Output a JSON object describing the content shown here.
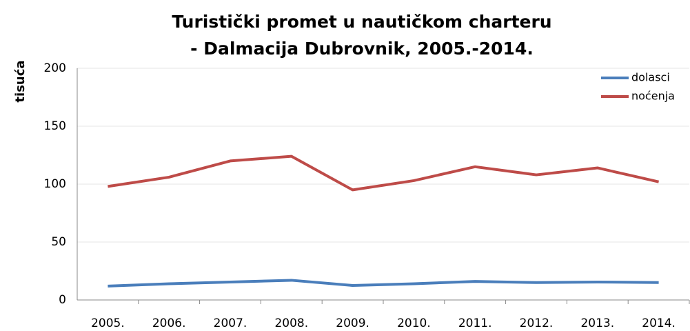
{
  "chart_data": {
    "type": "line",
    "title": [
      "Turistički promet u nautičkom charteru",
      "- Dalmacija Dubrovnik, 2005.-2014."
    ],
    "y_label": "tisuća",
    "categories": [
      "2005.",
      "2006.",
      "2007.",
      "2008.",
      "2009.",
      "2010.",
      "2011.",
      "2012.",
      "2013.",
      "2014."
    ],
    "series": [
      {
        "name": "dolasci",
        "color": "#4a7ebb",
        "values": [
          12,
          14,
          15.5,
          17,
          12.5,
          14,
          16,
          15,
          15.5,
          15
        ]
      },
      {
        "name": "noćenja",
        "color": "#be4b48",
        "values": [
          98,
          106,
          120,
          124,
          95,
          103,
          115,
          108,
          114,
          102
        ]
      }
    ],
    "ylim": [
      0,
      200
    ],
    "yticks": [
      0,
      50,
      100,
      150,
      200
    ],
    "grid": true,
    "legend": "top-right"
  }
}
